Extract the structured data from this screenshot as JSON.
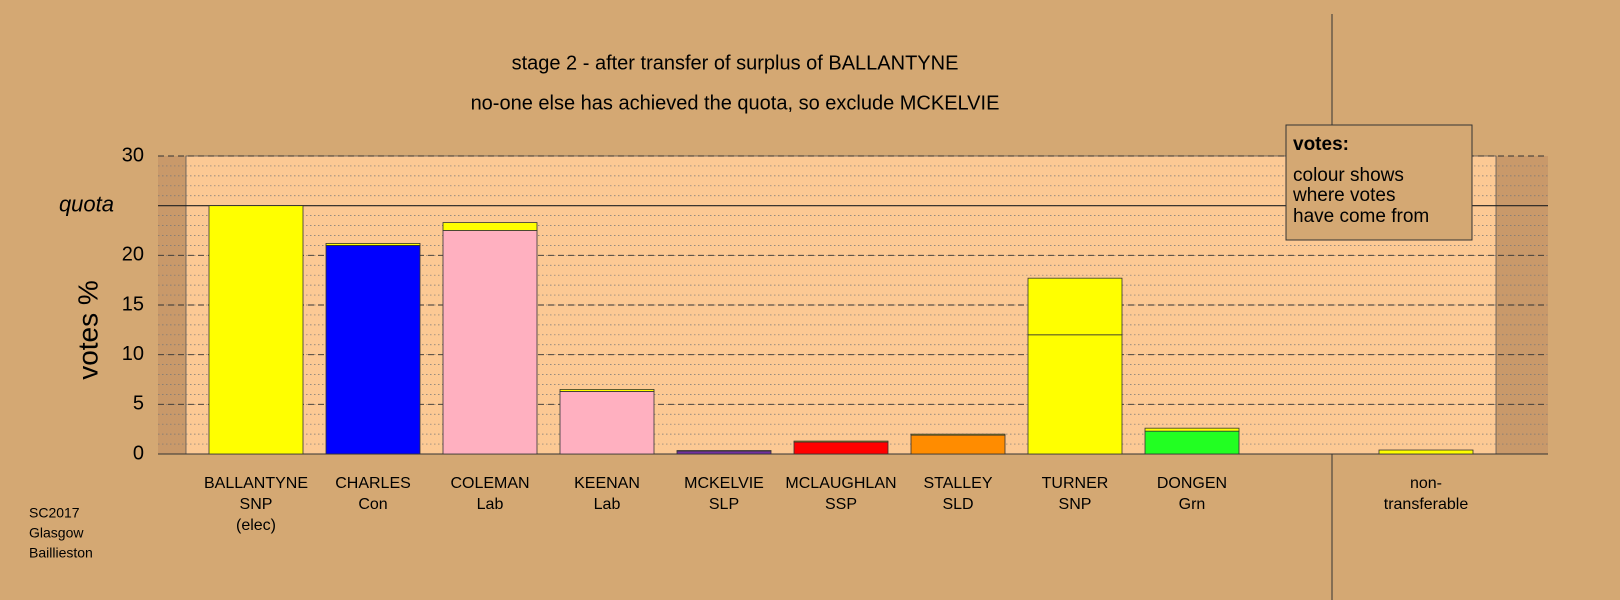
{
  "chart_data": {
    "type": "stacked-bar",
    "title": "stage 2 - after transfer of surplus of BALLANTYNE",
    "subtitle": "no-one else has achieved the quota, so exclude MCKELVIE",
    "y_label": "votes %",
    "categories": [
      [
        "BALLANTYNE",
        "SNP",
        "(elec)"
      ],
      [
        "CHARLES",
        "Con"
      ],
      [
        "COLEMAN",
        "Lab"
      ],
      [
        "KEENAN",
        "Lab"
      ],
      [
        "MCKELVIE",
        "SLP"
      ],
      [
        "MCLAUGHLAN",
        "SSP"
      ],
      [
        "STALLEY",
        "SLD"
      ],
      [
        "TURNER",
        "SNP"
      ],
      [
        "DONGEN",
        "Grn"
      ],
      null,
      [
        "non-",
        "transferable"
      ]
    ],
    "series": [
      {
        "colors": [
          "#ffff00",
          "#0000ff",
          "#ffb0c0",
          "#ffb0c0",
          "#7030a0",
          "#ff0000",
          "#ff8c00",
          "#ffff00",
          "#22ff22",
          null,
          null
        ],
        "values": [
          25,
          21.0,
          22.5,
          6.3,
          0.3,
          1.2,
          1.9,
          12.0,
          2.3,
          null,
          null
        ]
      },
      {
        "color": "#ffff00",
        "values": [
          null,
          0.2,
          0.8,
          0.2,
          0.05,
          0.1,
          0.1,
          5.7,
          0.3,
          null,
          0.4
        ]
      }
    ],
    "ylim": [
      0,
      30
    ],
    "yticks": [
      0,
      5,
      10,
      15,
      20,
      30
    ],
    "quota": {
      "value": 25,
      "label": "quota"
    },
    "grid": true,
    "legend": {
      "title": "votes:",
      "lines": [
        "colour shows",
        "where votes",
        "have come from"
      ]
    },
    "footnote": [
      "SC2017",
      "Glasgow",
      "Baillieston"
    ]
  }
}
